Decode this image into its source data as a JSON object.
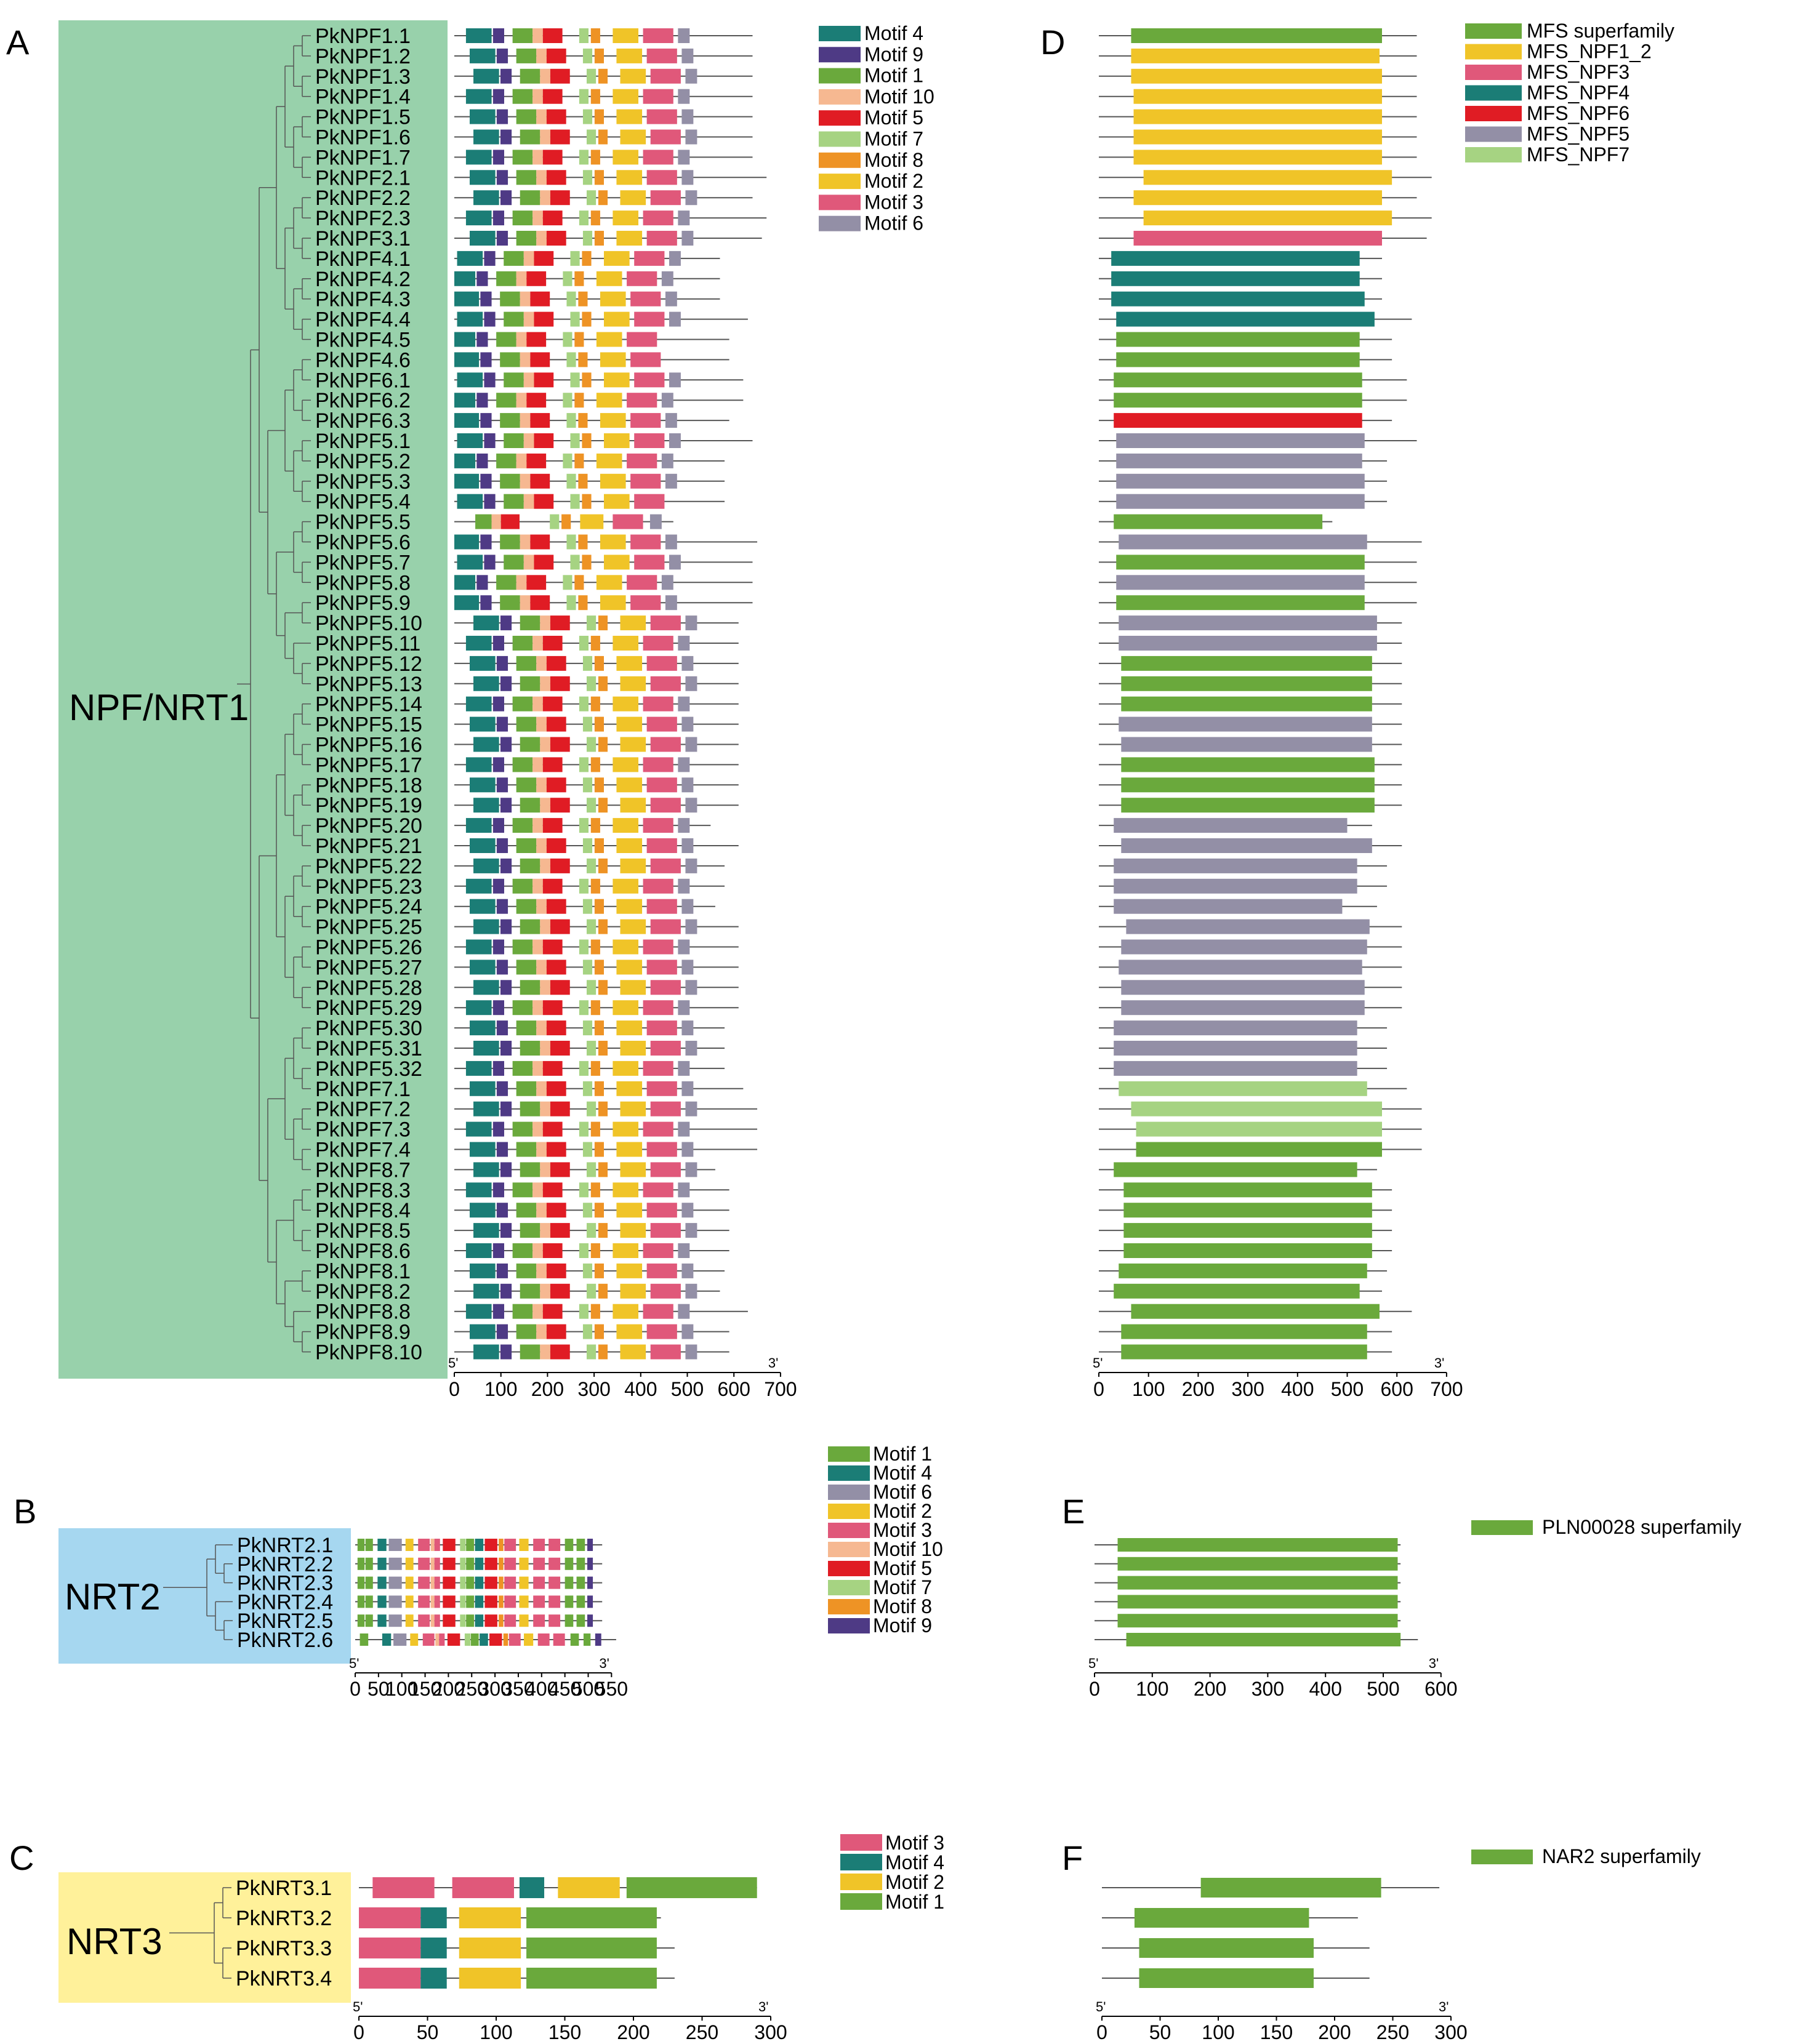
{
  "panels": {
    "A": "A",
    "B": "B",
    "C": "C",
    "D": "D",
    "E": "E",
    "F": "F"
  },
  "clades": {
    "A": "NPF/NRT1",
    "B": "NRT2",
    "C": "NRT3"
  },
  "colors": {
    "Motif 1": "#6aa93c",
    "Motif 2": "#f0c428",
    "Motif 3": "#e0587a",
    "Motif 4": "#1b7d76",
    "Motif 5": "#e01c24",
    "Motif 6": "#938fa6",
    "Motif 7": "#a6d382",
    "Motif 8": "#ee9325",
    "Motif 9": "#4e3a85",
    "Motif 10": "#f6b891",
    "MFS superfamily": "#6aa93c",
    "MFS_NPF1_2": "#f0c428",
    "MFS_NPF3": "#e0587a",
    "MFS_NPF4": "#1b7d76",
    "MFS_NPF6": "#e01c24",
    "MFS_NPF5": "#938fa6",
    "MFS_NPF7": "#a6d382",
    "PLN00028 superfamily": "#6aa93c",
    "NAR2 superfamily": "#6aa93c",
    "cladeA": "#98d1ab",
    "cladeB": "#a6d7f0",
    "cladeC": "#fff19a"
  },
  "legends": {
    "A": [
      "Motif 4",
      "Motif 9",
      "Motif 1",
      "Motif 10",
      "Motif 5",
      "Motif 7",
      "Motif 8",
      "Motif 2",
      "Motif 3",
      "Motif 6"
    ],
    "B": [
      "Motif 1",
      "Motif 4",
      "Motif 6",
      "Motif 2",
      "Motif 3",
      "Motif 10",
      "Motif 5",
      "Motif 7",
      "Motif 8",
      "Motif 9"
    ],
    "C": [
      "Motif 3",
      "Motif 4",
      "Motif 2",
      "Motif 1"
    ],
    "D": [
      "MFS superfamily",
      "MFS_NPF1_2",
      "MFS_NPF3",
      "MFS_NPF4",
      "MFS_NPF6",
      "MFS_NPF5",
      "MFS_NPF7"
    ],
    "E": [
      "PLN00028 superfamily"
    ],
    "F": [
      "NAR2 superfamily"
    ]
  },
  "axes": {
    "A": {
      "ticks": [
        "0",
        "100",
        "200",
        "300",
        "400",
        "500",
        "600",
        "700"
      ],
      "start": "5'",
      "end": "3'"
    },
    "B": {
      "ticks": [
        "0",
        "50",
        "100",
        "150",
        "200",
        "250",
        "300",
        "350",
        "400",
        "450",
        "500",
        "550"
      ],
      "start": "5'",
      "end": "3'"
    },
    "C": {
      "ticks": [
        "0",
        "50",
        "100",
        "150",
        "200",
        "250",
        "300"
      ],
      "start": "5'",
      "end": "3'"
    },
    "D": {
      "ticks": [
        "0",
        "100",
        "200",
        "300",
        "400",
        "500",
        "600",
        "700"
      ],
      "start": "5'",
      "end": "3'"
    },
    "E": {
      "ticks": [
        "0",
        "100",
        "200",
        "300",
        "400",
        "500",
        "600"
      ],
      "start": "5'",
      "end": "3'"
    },
    "F": {
      "ticks": [
        "0",
        "50",
        "100",
        "150",
        "200",
        "250",
        "300"
      ],
      "start": "5'",
      "end": "3'"
    }
  },
  "genes": {
    "A": [
      "PkNPF1.1",
      "PkNPF1.2",
      "PkNPF1.3",
      "PkNPF1.4",
      "PkNPF1.5",
      "PkNPF1.6",
      "PkNPF1.7",
      "PkNPF2.1",
      "PkNPF2.2",
      "PkNPF2.3",
      "PkNPF3.1",
      "PkNPF4.1",
      "PkNPF4.2",
      "PkNPF4.3",
      "PkNPF4.4",
      "PkNPF4.5",
      "PkNPF4.6",
      "PkNPF6.1",
      "PkNPF6.2",
      "PkNPF6.3",
      "PkNPF5.1",
      "PkNPF5.2",
      "PkNPF5.3",
      "PkNPF5.4",
      "PkNPF5.5",
      "PkNPF5.6",
      "PkNPF5.7",
      "PkNPF5.8",
      "PkNPF5.9",
      "PkNPF5.10",
      "PkNPF5.11",
      "PkNPF5.12",
      "PkNPF5.13",
      "PkNPF5.14",
      "PkNPF5.15",
      "PkNPF5.16",
      "PkNPF5.17",
      "PkNPF5.18",
      "PkNPF5.19",
      "PkNPF5.20",
      "PkNPF5.21",
      "PkNPF5.22",
      "PkNPF5.23",
      "PkNPF5.24",
      "PkNPF5.25",
      "PkNPF5.26",
      "PkNPF5.27",
      "PkNPF5.28",
      "PkNPF5.29",
      "PkNPF5.30",
      "PkNPF5.31",
      "PkNPF5.32",
      "PkNPF7.1",
      "PkNPF7.2",
      "PkNPF7.3",
      "PkNPF7.4",
      "PkNPF8.7",
      "PkNPF8.3",
      "PkNPF8.4",
      "PkNPF8.5",
      "PkNPF8.6",
      "PkNPF8.1",
      "PkNPF8.2",
      "PkNPF8.8",
      "PkNPF8.9",
      "PkNPF8.10"
    ],
    "B": [
      "PkNRT2.1",
      "PkNRT2.2",
      "PkNRT2.3",
      "PkNRT2.4",
      "PkNRT2.5",
      "PkNRT2.6"
    ],
    "C": [
      "PkNRT3.1",
      "PkNRT3.2",
      "PkNRT3.3",
      "PkNRT3.4"
    ]
  },
  "protein_lengths_aa": {
    "A": [
      640,
      640,
      640,
      640,
      640,
      640,
      640,
      670,
      640,
      670,
      660,
      570,
      570,
      570,
      630,
      590,
      590,
      620,
      620,
      590,
      640,
      580,
      580,
      580,
      470,
      650,
      640,
      640,
      640,
      610,
      610,
      610,
      610,
      610,
      610,
      610,
      610,
      610,
      610,
      550,
      610,
      580,
      580,
      560,
      610,
      610,
      610,
      610,
      610,
      580,
      580,
      580,
      620,
      650,
      650,
      650,
      560,
      590,
      590,
      590,
      590,
      580,
      570,
      630,
      590,
      590
    ],
    "B": [
      530,
      530,
      530,
      530,
      530,
      560
    ],
    "C": [
      290,
      220,
      230,
      230
    ]
  },
  "motif_layouts_aa": {
    "npf_standard": [
      [
        "Motif 4",
        25,
        80
      ],
      [
        "Motif 9",
        83,
        107
      ],
      [
        "Motif 1",
        125,
        168
      ],
      [
        "Motif 10",
        168,
        190
      ],
      [
        "Motif 5",
        190,
        232
      ],
      [
        "Motif 7",
        268,
        288
      ],
      [
        "Motif 8",
        293,
        313
      ],
      [
        "Motif 2",
        340,
        395
      ],
      [
        "Motif 3",
        405,
        470
      ],
      [
        "Motif 6",
        480,
        505
      ]
    ],
    "npf_short": [
      [
        "Motif 1",
        80,
        115
      ],
      [
        "Motif 10",
        115,
        135
      ],
      [
        "Motif 5",
        135,
        175
      ],
      [
        "Motif 7",
        240,
        260
      ],
      [
        "Motif 8",
        265,
        285
      ],
      [
        "Motif 2",
        305,
        355
      ],
      [
        "Motif 3",
        375,
        440
      ],
      [
        "Motif 6",
        455,
        480
      ]
    ],
    "npf_no_motif6": [
      [
        "Motif 4",
        25,
        80
      ],
      [
        "Motif 9",
        83,
        107
      ],
      [
        "Motif 1",
        125,
        168
      ],
      [
        "Motif 10",
        168,
        190
      ],
      [
        "Motif 5",
        190,
        232
      ],
      [
        "Motif 7",
        268,
        288
      ],
      [
        "Motif 8",
        293,
        313
      ],
      [
        "Motif 2",
        340,
        395
      ],
      [
        "Motif 3",
        405,
        470
      ]
    ],
    "nrt2_standard": [
      [
        "Motif 1",
        5,
        20
      ],
      [
        "Motif 1",
        22,
        38
      ],
      [
        "Motif 4",
        48,
        67
      ],
      [
        "Motif 6",
        72,
        100
      ],
      [
        "Motif 2",
        108,
        125
      ],
      [
        "Motif 3",
        135,
        160
      ],
      [
        "Motif 10",
        162,
        170
      ],
      [
        "Motif 3",
        170,
        182
      ],
      [
        "Motif 5",
        188,
        215
      ],
      [
        "Motif 7",
        225,
        237
      ],
      [
        "Motif 1",
        238,
        255
      ],
      [
        "Motif 4",
        257,
        275
      ],
      [
        "Motif 5",
        278,
        305
      ],
      [
        "Motif 8",
        308,
        318
      ],
      [
        "Motif 3",
        320,
        345
      ],
      [
        "Motif 2",
        352,
        372
      ],
      [
        "Motif 3",
        382,
        407
      ],
      [
        "Motif 3",
        415,
        440
      ],
      [
        "Motif 1",
        450,
        468
      ],
      [
        "Motif 1",
        475,
        493
      ],
      [
        "Motif 9",
        498,
        510
      ]
    ],
    "nrt2_variant": [
      [
        "Motif 1",
        10,
        28
      ],
      [
        "Motif 4",
        58,
        77
      ],
      [
        "Motif 6",
        82,
        110
      ],
      [
        "Motif 2",
        118,
        135
      ],
      [
        "Motif 3",
        145,
        170
      ],
      [
        "Motif 10",
        172,
        180
      ],
      [
        "Motif 3",
        180,
        192
      ],
      [
        "Motif 5",
        198,
        225
      ],
      [
        "Motif 7",
        235,
        247
      ],
      [
        "Motif 1",
        248,
        265
      ],
      [
        "Motif 4",
        267,
        285
      ],
      [
        "Motif 5",
        288,
        315
      ],
      [
        "Motif 8",
        318,
        328
      ],
      [
        "Motif 3",
        330,
        355
      ],
      [
        "Motif 2",
        362,
        382
      ],
      [
        "Motif 3",
        392,
        417
      ],
      [
        "Motif 3",
        425,
        450
      ],
      [
        "Motif 1",
        462,
        480
      ],
      [
        "Motif 1",
        490,
        505
      ],
      [
        "Motif 9",
        515,
        528
      ]
    ],
    "nrt3_full": [
      [
        "Motif 3",
        5,
        50
      ],
      [
        "Motif 3",
        63,
        108
      ],
      [
        "Motif 4",
        112,
        130
      ],
      [
        "Motif 2",
        140,
        185
      ],
      [
        "Motif 1",
        190,
        285
      ]
    ],
    "nrt3_short": [
      [
        "Motif 3",
        0,
        45
      ],
      [
        "Motif 4",
        45,
        64
      ],
      [
        "Motif 2",
        73,
        118
      ],
      [
        "Motif 1",
        122,
        217
      ]
    ]
  },
  "domains_aa": {
    "D": [
      [
        "MFS superfamily",
        65,
        570
      ],
      [
        "MFS_NPF1_2",
        65,
        565
      ],
      [
        "MFS_NPF1_2",
        65,
        570
      ],
      [
        "MFS_NPF1_2",
        70,
        570
      ],
      [
        "MFS_NPF1_2",
        70,
        570
      ],
      [
        "MFS_NPF1_2",
        70,
        570
      ],
      [
        "MFS_NPF1_2",
        70,
        570
      ],
      [
        "MFS_NPF1_2",
        90,
        590
      ],
      [
        "MFS_NPF1_2",
        70,
        570
      ],
      [
        "MFS_NPF1_2",
        90,
        590
      ],
      [
        "MFS_NPF3",
        70,
        570
      ],
      [
        "MFS_NPF4",
        25,
        525
      ],
      [
        "MFS_NPF4",
        25,
        525
      ],
      [
        "MFS_NPF4",
        25,
        535
      ],
      [
        "MFS_NPF4",
        35,
        555
      ],
      [
        "MFS superfamily",
        35,
        525
      ],
      [
        "MFS superfamily",
        35,
        525
      ],
      [
        "MFS superfamily",
        30,
        530
      ],
      [
        "MFS superfamily",
        30,
        530
      ],
      [
        "MFS_NPF6",
        30,
        530
      ],
      [
        "MFS_NPF5",
        35,
        535
      ],
      [
        "MFS_NPF5",
        35,
        530
      ],
      [
        "MFS_NPF5",
        35,
        535
      ],
      [
        "MFS_NPF5",
        35,
        535
      ],
      [
        "MFS superfamily",
        30,
        450
      ],
      [
        "MFS_NPF5",
        40,
        540
      ],
      [
        "MFS superfamily",
        35,
        535
      ],
      [
        "MFS_NPF5",
        35,
        535
      ],
      [
        "MFS superfamily",
        35,
        535
      ],
      [
        "MFS_NPF5",
        40,
        560
      ],
      [
        "MFS_NPF5",
        40,
        560
      ],
      [
        "MFS superfamily",
        45,
        550
      ],
      [
        "MFS superfamily",
        45,
        550
      ],
      [
        "MFS superfamily",
        45,
        550
      ],
      [
        "MFS_NPF5",
        40,
        550
      ],
      [
        "MFS_NPF5",
        45,
        550
      ],
      [
        "MFS superfamily",
        45,
        555
      ],
      [
        "MFS superfamily",
        45,
        555
      ],
      [
        "MFS superfamily",
        45,
        555
      ],
      [
        "MFS_NPF5",
        30,
        500
      ],
      [
        "MFS_NPF5",
        45,
        550
      ],
      [
        "MFS_NPF5",
        30,
        520
      ],
      [
        "MFS_NPF5",
        30,
        520
      ],
      [
        "MFS_NPF5",
        30,
        490
      ],
      [
        "MFS_NPF5",
        55,
        545
      ],
      [
        "MFS_NPF5",
        45,
        540
      ],
      [
        "MFS_NPF5",
        40,
        530
      ],
      [
        "MFS_NPF5",
        45,
        535
      ],
      [
        "MFS_NPF5",
        45,
        535
      ],
      [
        "MFS_NPF5",
        30,
        520
      ],
      [
        "MFS_NPF5",
        30,
        520
      ],
      [
        "MFS_NPF5",
        30,
        520
      ],
      [
        "MFS_NPF7",
        40,
        540
      ],
      [
        "MFS_NPF7",
        65,
        570
      ],
      [
        "MFS_NPF7",
        75,
        570
      ],
      [
        "MFS superfamily",
        75,
        570
      ],
      [
        "MFS superfamily",
        30,
        520
      ],
      [
        "MFS superfamily",
        50,
        550
      ],
      [
        "MFS superfamily",
        50,
        550
      ],
      [
        "MFS superfamily",
        50,
        550
      ],
      [
        "MFS superfamily",
        50,
        550
      ],
      [
        "MFS superfamily",
        40,
        540
      ],
      [
        "MFS superfamily",
        30,
        525
      ],
      [
        "MFS superfamily",
        65,
        565
      ],
      [
        "MFS superfamily",
        45,
        540
      ],
      [
        "MFS superfamily",
        45,
        540
      ]
    ],
    "E": [
      [
        "PLN00028 superfamily",
        40,
        525
      ],
      [
        "PLN00028 superfamily",
        40,
        525
      ],
      [
        "PLN00028 superfamily",
        40,
        525
      ],
      [
        "PLN00028 superfamily",
        40,
        525
      ],
      [
        "PLN00028 superfamily",
        40,
        525
      ],
      [
        "PLN00028 superfamily",
        55,
        530
      ]
    ],
    "F": [
      [
        "NAR2 superfamily",
        85,
        240
      ],
      [
        "NAR2 superfamily",
        28,
        178
      ],
      [
        "NAR2 superfamily",
        32,
        182
      ],
      [
        "NAR2 superfamily",
        32,
        182
      ]
    ]
  }
}
